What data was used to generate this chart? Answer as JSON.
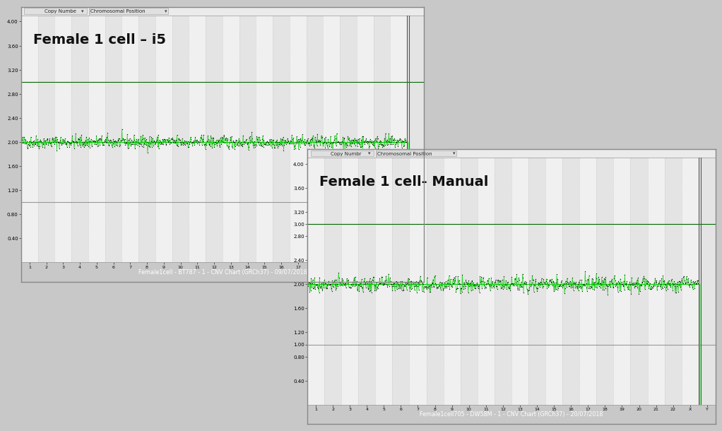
{
  "panel1": {
    "title": "Female 1 cell – i5",
    "toolbar_label1": "Copy Numbe",
    "toolbar_label2": "Chromosomal Position",
    "footer": "Female1cell - BT787 - 1 - CNV Chart (GRCh37) - 09/07/2018",
    "signal_level": 2.0,
    "upper_threshold": 3.0,
    "lower_threshold": 1.0,
    "yticks": [
      0.4,
      0.8,
      1.2,
      1.6,
      2.0,
      2.4,
      2.8,
      3.2,
      3.6,
      4.0
    ],
    "ylim": [
      0.0,
      4.1
    ],
    "signal_color": "#00cc00",
    "threshold_upper_color": "#006600",
    "threshold_lower_color": "#999999",
    "noise_std": 0.055
  },
  "panel2": {
    "title": "Female 1 cell- Manual",
    "toolbar_label1": "Copy Numbr",
    "toolbar_label2": "Chromosomal Position",
    "footer": "Female1cell705 - DW58M - 1 - CNV Chart (GRCh37) - 20/07/2018",
    "signal_level": 2.0,
    "upper_threshold": 3.0,
    "lower_threshold": 1.0,
    "yticks": [
      0.4,
      0.8,
      1.0,
      1.2,
      1.6,
      2.0,
      2.4,
      2.8,
      3.0,
      3.2,
      3.6,
      4.0
    ],
    "ylim": [
      0.0,
      4.1
    ],
    "signal_color": "#00cc00",
    "threshold_upper_color": "#006600",
    "threshold_lower_color": "#999999",
    "noise_std": 0.065
  },
  "chromosomes": [
    "1",
    "2",
    "3",
    "4",
    "5",
    "6",
    "7",
    "8",
    "9",
    "10",
    "11",
    "12",
    "13",
    "14",
    "15",
    "16",
    "17",
    "18",
    "19",
    "20",
    "21",
    "22",
    "X",
    "Y"
  ],
  "outer_bg": "#c8c8c8",
  "panel_bg": "#ffffff",
  "band_colors": [
    "#f0f0f0",
    "#e4e4e4"
  ],
  "toolbar_bg": "#ebebeb",
  "toolbar_border": "#cccccc",
  "footer_bg": "#1010ee",
  "footer_color": "#ffffff",
  "panel_border": "#aaaaaa",
  "vline_dark": "#555555",
  "vline_dash_color": "#cccccc"
}
